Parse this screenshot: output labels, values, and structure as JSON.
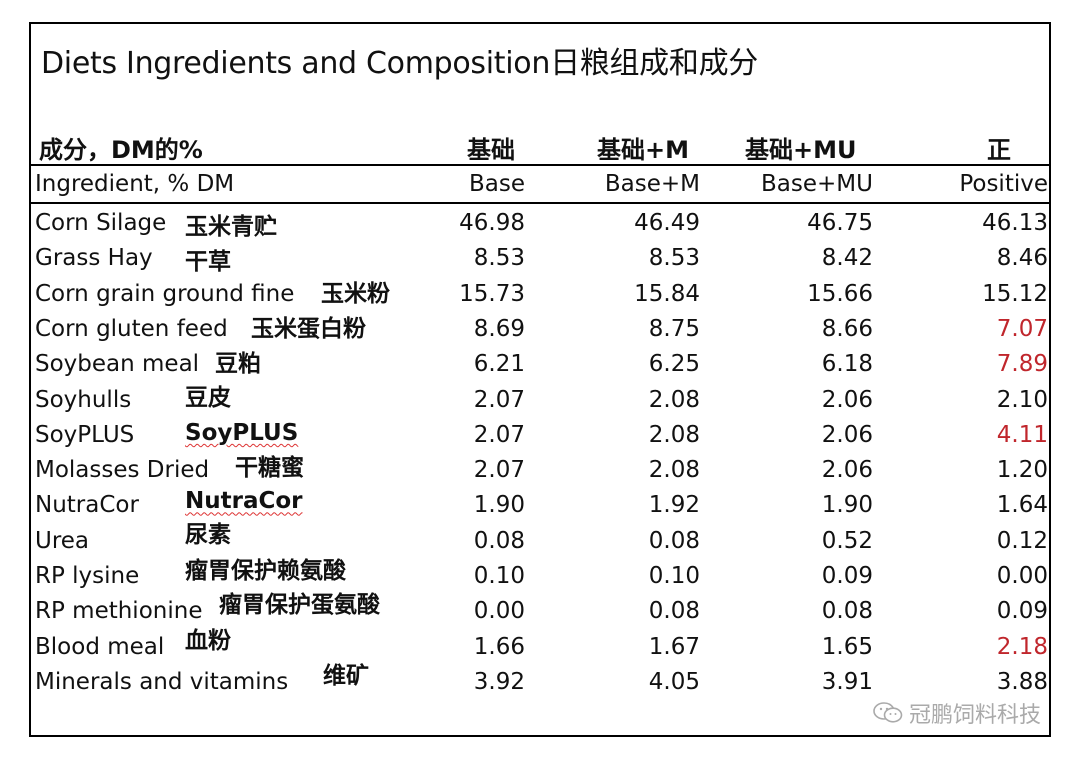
{
  "title": "Diets Ingredients and Composition日粮组成和成分",
  "header_cn": {
    "label": "成分，DM的%",
    "cols": [
      "基础",
      "基础+M",
      "基础+MU",
      "正"
    ]
  },
  "header_en": {
    "label": "Ingredient, % DM",
    "cols": [
      "Base",
      "Base+M",
      "Base+MU",
      "Positive"
    ]
  },
  "rows": [
    {
      "en": "Corn Silage",
      "cn": "玉米青贮",
      "values": [
        "46.98",
        "46.49",
        "46.75",
        "46.13"
      ],
      "positive_highlight": false
    },
    {
      "en": "Grass Hay",
      "cn": "干草",
      "values": [
        "8.53",
        "8.53",
        "8.42",
        "8.46"
      ],
      "positive_highlight": false
    },
    {
      "en": "Corn grain ground fine",
      "cn": "玉米粉",
      "values": [
        "15.73",
        "15.84",
        "15.66",
        "15.12"
      ],
      "positive_highlight": false
    },
    {
      "en": "Corn gluten feed",
      "cn": "玉米蛋白粉",
      "values": [
        "8.69",
        "8.75",
        "8.66",
        "7.07"
      ],
      "positive_highlight": true
    },
    {
      "en": "Soybean meal",
      "cn": "豆粕",
      "values": [
        "6.21",
        "6.25",
        "6.18",
        "7.89"
      ],
      "positive_highlight": true
    },
    {
      "en": "Soyhulls",
      "cn": "豆皮",
      "values": [
        "2.07",
        "2.08",
        "2.06",
        "2.10"
      ],
      "positive_highlight": false
    },
    {
      "en": "SoyPLUS",
      "cn": "SoyPLUS",
      "values": [
        "2.07",
        "2.08",
        "2.06",
        "4.11"
      ],
      "positive_highlight": true
    },
    {
      "en": "Molasses Dried",
      "cn": "干糖蜜",
      "values": [
        "2.07",
        "2.08",
        "2.06",
        "1.20"
      ],
      "positive_highlight": false
    },
    {
      "en": "NutraCor",
      "cn": "NutraCor",
      "values": [
        "1.90",
        "1.92",
        "1.90",
        "1.64"
      ],
      "positive_highlight": false
    },
    {
      "en": "Urea",
      "cn": "尿素",
      "values": [
        "0.08",
        "0.08",
        "0.52",
        "0.12"
      ],
      "positive_highlight": false
    },
    {
      "en": "RP lysine",
      "cn": "瘤胃保护赖氨酸",
      "values": [
        "0.10",
        "0.10",
        "0.09",
        "0.00"
      ],
      "positive_highlight": false
    },
    {
      "en": "RP methionine",
      "cn": "瘤胃保护蛋氨酸",
      "values": [
        "0.00",
        "0.08",
        "0.08",
        "0.09"
      ],
      "positive_highlight": false
    },
    {
      "en": "Blood meal",
      "cn": "血粉",
      "values": [
        "1.66",
        "1.67",
        "1.65",
        "2.18"
      ],
      "positive_highlight": true
    },
    {
      "en": "Minerals and vitamins",
      "cn": "维矿",
      "values": [
        "3.92",
        "4.05",
        "3.91",
        "3.88"
      ],
      "positive_highlight": false
    }
  ],
  "colors": {
    "highlight": "#c0262c",
    "watermark": "#aaaaaa"
  },
  "watermark": "冠鹏饲料科技",
  "watermark_icon": "wechat-icon"
}
